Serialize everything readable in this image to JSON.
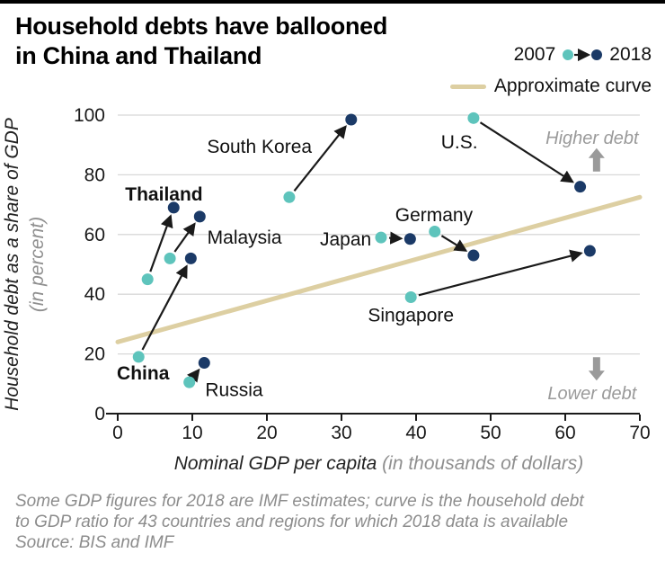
{
  "header": {
    "title_line1": "Household debts have ballooned",
    "title_line2": "in China and Thailand",
    "legend": {
      "year_start": "2007",
      "year_end": "2018",
      "curve_label": "Approximate curve"
    }
  },
  "colors": {
    "start_2007": "#5ec4bc",
    "end_2018": "#1b3a67",
    "curve": "#ddcfa2",
    "grid": "#d8d8d8",
    "axis": "#1a1a1a",
    "annotation": "#9a9a9a"
  },
  "chart_data": {
    "type": "scatter",
    "title": "Household debts have ballooned in China and Thailand",
    "xlabel_main": "Nominal GDP per capita",
    "xlabel_sub": "(in thousands of dollars)",
    "ylabel_main": "Household debt as a share of GDP",
    "ylabel_sub": "(in percent)",
    "xlim": [
      0,
      70
    ],
    "ylim": [
      0,
      100
    ],
    "x_ticks": [
      0,
      10,
      20,
      30,
      40,
      50,
      60,
      70
    ],
    "y_ticks": [
      0,
      20,
      40,
      60,
      80,
      100
    ],
    "series_labels": [
      "2007",
      "2018"
    ],
    "grid": "horizontal",
    "legend_position": "top-right",
    "points": [
      {
        "name": "Thailand",
        "bold": true,
        "p2007": {
          "x": 4,
          "y": 45
        },
        "p2018": {
          "x": 7.5,
          "y": 69
        },
        "label": {
          "x": 6.2,
          "y": 73.5,
          "anchor": "middle"
        }
      },
      {
        "name": "Malaysia",
        "bold": false,
        "p2007": {
          "x": 7,
          "y": 52
        },
        "p2018": {
          "x": 11,
          "y": 66
        },
        "label": {
          "x": 17,
          "y": 59,
          "anchor": "middle"
        }
      },
      {
        "name": "China",
        "bold": true,
        "p2007": {
          "x": 2.8,
          "y": 19
        },
        "p2018": {
          "x": 9.8,
          "y": 52
        },
        "label": {
          "x": 3.4,
          "y": 13.5,
          "anchor": "middle"
        }
      },
      {
        "name": "Russia",
        "bold": false,
        "p2007": {
          "x": 9.6,
          "y": 10.5
        },
        "p2018": {
          "x": 11.6,
          "y": 17
        },
        "label": {
          "x": 15.6,
          "y": 8,
          "anchor": "middle"
        }
      },
      {
        "name": "South Korea",
        "bold": false,
        "p2007": {
          "x": 23,
          "y": 72.5
        },
        "p2018": {
          "x": 31.3,
          "y": 98.5
        },
        "label": {
          "x": 19,
          "y": 89.5,
          "anchor": "middle"
        }
      },
      {
        "name": "Japan",
        "bold": false,
        "p2007": {
          "x": 35.3,
          "y": 59
        },
        "p2018": {
          "x": 39.2,
          "y": 58.5
        },
        "label": {
          "x": 34,
          "y": 58.5,
          "anchor": "end"
        }
      },
      {
        "name": "Germany",
        "bold": false,
        "p2007": {
          "x": 42.5,
          "y": 61
        },
        "p2018": {
          "x": 47.7,
          "y": 53
        },
        "label": {
          "x": 42.4,
          "y": 66.5,
          "anchor": "middle"
        }
      },
      {
        "name": "U.S.",
        "bold": false,
        "p2007": {
          "x": 47.7,
          "y": 99
        },
        "p2018": {
          "x": 62,
          "y": 76
        },
        "label": {
          "x": 45.8,
          "y": 91,
          "anchor": "middle"
        }
      },
      {
        "name": "Singapore",
        "bold": false,
        "p2007": {
          "x": 39.3,
          "y": 39
        },
        "p2018": {
          "x": 63.3,
          "y": 54.5
        },
        "label": {
          "x": 39.3,
          "y": 33,
          "anchor": "middle"
        }
      }
    ],
    "approx_curve": {
      "from": [
        0,
        24
      ],
      "to": [
        70,
        72.5
      ]
    },
    "annotations": [
      {
        "text": "Higher debt",
        "x": 63.6,
        "y": 92.5,
        "arrow": "up",
        "arrow_x": 64.2,
        "arrow_y": 85
      },
      {
        "text": "Lower debt",
        "x": 63.6,
        "y": 7,
        "arrow": "down",
        "arrow_x": 64.2,
        "arrow_y": 15
      }
    ]
  },
  "footnote": {
    "line1": "Some GDP figures for 2018 are IMF estimates; curve is the household debt",
    "line2": "to GDP ratio for 43 countries and regions for which 2018 data is available",
    "line3": "Source: BIS and IMF"
  }
}
